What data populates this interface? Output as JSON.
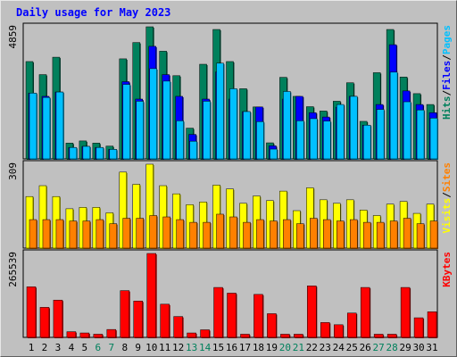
{
  "colors": {
    "hits": "#00805c",
    "files": "#0000ff",
    "pages": "#00c0ff",
    "visits": "#ffff00",
    "sites": "#ff8000",
    "kbytes": "#ff0000",
    "weekday_label": "#000000",
    "weekend_label": "#00805c",
    "title": "#0000ff"
  },
  "chart_data": {
    "type": "bar",
    "title": "Daily usage for May 2023",
    "categories": [
      "1",
      "2",
      "3",
      "4",
      "5",
      "6",
      "7",
      "8",
      "9",
      "10",
      "11",
      "12",
      "13",
      "14",
      "15",
      "16",
      "17",
      "18",
      "19",
      "20",
      "21",
      "22",
      "23",
      "24",
      "25",
      "26",
      "27",
      "28",
      "29",
      "30",
      "31"
    ],
    "weekend_days": [
      "6",
      "7",
      "13",
      "14",
      "20",
      "21",
      "27",
      "28"
    ],
    "panels": [
      {
        "id": "top",
        "ymax_label": "4859",
        "ylim": [
          0,
          4859
        ],
        "legend": [
          {
            "text": "Hits",
            "color_key": "hits"
          },
          {
            "sep": "/"
          },
          {
            "text": "Files",
            "color_key": "files"
          },
          {
            "sep": "/"
          },
          {
            "text": "Pages",
            "color_key": "pages"
          }
        ],
        "series": [
          {
            "name": "Hits",
            "color_key": "hits",
            "values": [
              3580,
              3100,
              3740,
              580,
              660,
              580,
              470,
              3680,
              4280,
              4859,
              3960,
              3060,
              1130,
              3480,
              4760,
              3580,
              2580,
              1910,
              590,
              3000,
              2300,
              1920,
              1760,
              2120,
              2800,
              1380,
              3170,
              4760,
              3010,
              2400,
              2000
            ]
          },
          {
            "name": "Files",
            "color_key": "files",
            "values": [
              2420,
              2300,
              2460,
              420,
              460,
              420,
              350,
              2840,
              2200,
              4140,
              3100,
              2300,
              900,
              2200,
              3200,
              2200,
              1740,
              1910,
              480,
              2200,
              2300,
              1700,
              1540,
              1900,
              2300,
              1240,
              2000,
              4200,
              2500,
              2000,
              1700
            ]
          },
          {
            "name": "Pages",
            "color_key": "pages",
            "values": [
              2420,
              2260,
              2460,
              420,
              460,
              420,
              350,
              2740,
              2120,
              3320,
              2860,
              1400,
              650,
              2120,
              3520,
              2580,
              1740,
              1370,
              360,
              2480,
              1400,
              1480,
              1390,
              2000,
              2300,
              1240,
              1820,
              3190,
              2100,
              1800,
              1500
            ]
          }
        ]
      },
      {
        "id": "mid",
        "ymax_label": "309",
        "ylim": [
          0,
          309
        ],
        "legend": [
          {
            "text": "Visits",
            "color_key": "visits"
          },
          {
            "sep": "/"
          },
          {
            "text": "Sites",
            "color_key": "sites"
          }
        ],
        "series": [
          {
            "name": "Visits",
            "color_key": "visits",
            "values": [
              190,
              230,
              190,
              145,
              150,
              150,
              130,
              280,
              235,
              309,
              230,
              200,
              160,
              170,
              232,
              218,
              165,
              192,
              175,
              210,
              138,
              222,
              178,
              165,
              178,
              140,
              120,
              162,
              172,
              128,
              162
            ]
          },
          {
            "name": "Sites",
            "color_key": "sites",
            "values": [
              105,
              105,
              105,
              100,
              100,
              105,
              90,
              110,
              110,
              120,
              115,
              105,
              95,
              95,
              125,
              115,
              95,
              105,
              100,
              105,
              90,
              110,
              105,
              100,
              105,
              95,
              95,
              100,
              110,
              90,
              100
            ]
          }
        ]
      },
      {
        "id": "bot",
        "ymax_label": "265539",
        "ylim": [
          0,
          265539
        ],
        "legend": [
          {
            "text": "KBytes",
            "color_key": "kbytes"
          }
        ],
        "series": [
          {
            "name": "KBytes",
            "color_key": "kbytes",
            "values": [
              160000,
              95000,
              118000,
              18000,
              14000,
              10000,
              25000,
              148000,
              115000,
              265539,
              105000,
              66000,
              14000,
              24000,
              158000,
              140000,
              10000,
              136000,
              75000,
              10000,
              10000,
              163000,
              47000,
              40000,
              77000,
              158000,
              10000,
              10000,
              158000,
              62000,
              81000
            ]
          }
        ]
      }
    ]
  }
}
